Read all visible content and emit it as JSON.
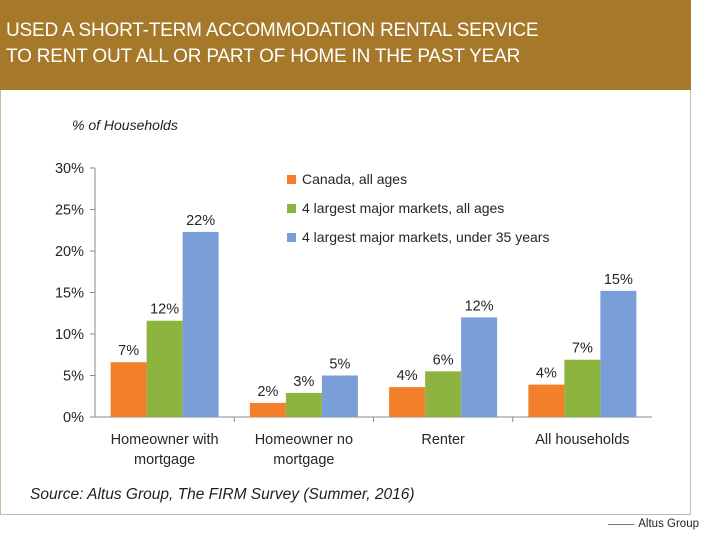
{
  "title_lines": [
    "USED A SHORT-TERM ACCOMMODATION RENTAL SERVICE",
    "TO RENT OUT ALL OR PART OF HOME IN THE PAST YEAR"
  ],
  "source": "Source: Altus Group, The FIRM Survey (Summer, 2016)",
  "credit": "Altus Group",
  "colors": {
    "title_bg": "#a5782a",
    "canada": "#f47f2a",
    "major": "#8db43f",
    "under35": "#7a9fd8"
  },
  "chart_data": {
    "type": "bar",
    "ylabel": "% of Households",
    "ylim": [
      0,
      30
    ],
    "yticks": [
      0,
      5,
      10,
      15,
      20,
      25,
      30
    ],
    "ytick_labels": [
      "0%",
      "5%",
      "10%",
      "15%",
      "20%",
      "25%",
      "30%"
    ],
    "categories": [
      [
        "Homeowner with",
        "mortgage"
      ],
      [
        "Homeowner no",
        "mortgage"
      ],
      [
        "Renter"
      ],
      [
        "All households"
      ]
    ],
    "series": [
      {
        "name": "Canada, all ages",
        "color": "#f47f2a",
        "values": [
          6.6,
          1.7,
          3.6,
          3.9
        ],
        "labels": [
          "7%",
          "2%",
          "4%",
          "4%"
        ]
      },
      {
        "name": "4 largest major markets, all ages",
        "color": "#8db43f",
        "values": [
          11.6,
          2.9,
          5.5,
          6.9
        ],
        "labels": [
          "12%",
          "3%",
          "6%",
          "7%"
        ]
      },
      {
        "name": "4 largest major markets, under 35 years",
        "color": "#7a9fd8",
        "values": [
          22.3,
          5.0,
          12.0,
          15.2
        ],
        "labels": [
          "22%",
          "5%",
          "12%",
          "15%"
        ]
      }
    ],
    "legend_position": "top-center",
    "grid": false
  }
}
